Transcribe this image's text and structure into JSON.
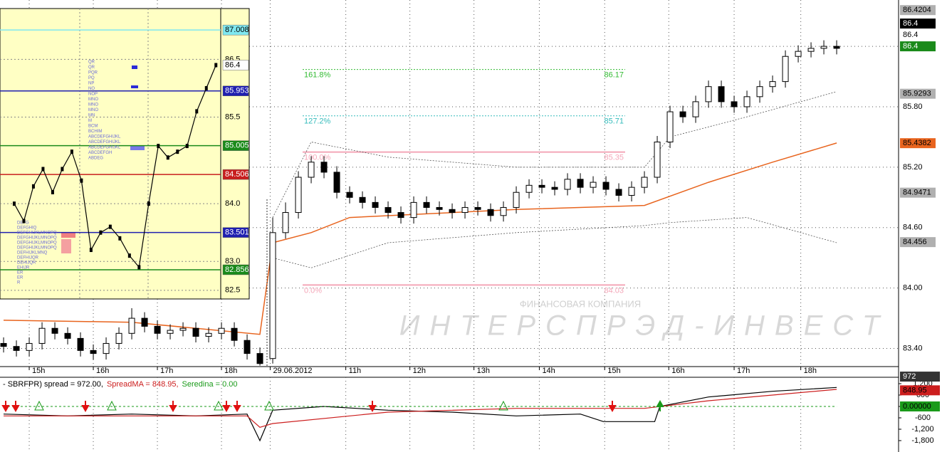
{
  "chart_data": [
    {
      "type": "candlestick",
      "xlim": [
        -0.28,
        69.83
      ],
      "ylim": [
        83.22,
        86.86
      ],
      "xticks": [
        {
          "value": 2,
          "label": "15h"
        },
        {
          "value": 7,
          "label": "16h"
        },
        {
          "value": 12,
          "label": "17h"
        },
        {
          "value": 17,
          "label": "18h"
        },
        {
          "value": 20.8,
          "label": "29.06.2012"
        },
        {
          "value": 26.7,
          "label": "11h"
        },
        {
          "value": 31.7,
          "label": "12h"
        },
        {
          "value": 36.7,
          "label": "13h"
        },
        {
          "value": 41.8,
          "label": "14h"
        },
        {
          "value": 46.9,
          "label": "15h"
        },
        {
          "value": 51.9,
          "label": "16h"
        },
        {
          "value": 57,
          "label": "17h"
        },
        {
          "value": 62.2,
          "label": "18h"
        }
      ],
      "yticks": [
        {
          "value": 86.4,
          "label": "86.40"
        },
        {
          "value": 85.8,
          "label": "85.80"
        },
        {
          "value": 85.2,
          "label": "85.20"
        },
        {
          "value": 84.6,
          "label": "84.60"
        },
        {
          "value": 84,
          "label": "84.00"
        },
        {
          "value": 83.4,
          "label": "83.40"
        }
      ],
      "open": [
        83.45,
        83.42,
        83.38,
        83.45,
        83.6,
        83.55,
        83.5,
        83.38,
        83.35,
        83.45,
        83.55,
        83.7,
        83.62,
        83.55,
        83.58,
        83.6,
        83.52,
        83.55,
        83.6,
        83.48,
        83.35,
        83.3,
        84.55,
        84.75,
        85.1,
        85.25,
        85.15,
        84.95,
        84.9,
        84.85,
        84.8,
        84.75,
        84.7,
        84.85,
        84.8,
        84.78,
        84.75,
        84.8,
        84.78,
        84.72,
        84.8,
        84.95,
        85.02,
        85.0,
        84.98,
        85.08,
        85.0,
        85.05,
        84.98,
        84.92,
        85.0,
        85.1,
        85.45,
        85.75,
        85.7,
        85.85,
        86.0,
        85.85,
        85.8,
        85.9,
        86.0,
        86.05,
        86.3,
        86.35,
        86.38,
        86.4
      ],
      "high": [
        83.51,
        83.48,
        83.51,
        83.66,
        83.66,
        83.61,
        83.56,
        83.44,
        83.51,
        83.61,
        83.8,
        83.76,
        83.68,
        83.64,
        83.66,
        83.66,
        83.61,
        83.66,
        83.66,
        83.54,
        83.41,
        84.7,
        84.85,
        85.16,
        85.31,
        85.31,
        85.21,
        85.01,
        84.96,
        84.91,
        84.86,
        84.81,
        84.91,
        84.91,
        84.86,
        84.84,
        84.86,
        84.86,
        84.84,
        84.86,
        85.01,
        85.08,
        85.08,
        85.06,
        85.14,
        85.14,
        85.11,
        85.11,
        85.04,
        85.06,
        85.16,
        85.51,
        85.81,
        85.81,
        85.91,
        86.06,
        86.06,
        85.91,
        85.96,
        86.06,
        86.11,
        86.36,
        86.41,
        86.44,
        86.46,
        86.46
      ],
      "low": [
        83.36,
        83.32,
        83.32,
        83.39,
        83.49,
        83.44,
        83.32,
        83.29,
        83.29,
        83.39,
        83.49,
        83.56,
        83.49,
        83.49,
        83.52,
        83.46,
        83.46,
        83.49,
        83.42,
        83.29,
        83.23,
        83.25,
        84.49,
        84.69,
        85.04,
        85.09,
        84.89,
        84.84,
        84.79,
        84.74,
        84.69,
        84.64,
        84.64,
        84.74,
        84.72,
        84.69,
        84.69,
        84.72,
        84.66,
        84.66,
        84.74,
        84.89,
        84.94,
        84.92,
        84.92,
        84.94,
        84.94,
        84.92,
        84.86,
        84.86,
        84.94,
        85.04,
        85.39,
        85.64,
        85.64,
        85.79,
        85.79,
        85.74,
        85.74,
        85.84,
        85.94,
        85.99,
        86.24,
        86.29,
        86.32,
        86.32
      ],
      "close": [
        83.42,
        83.38,
        83.45,
        83.6,
        83.55,
        83.5,
        83.38,
        83.35,
        83.45,
        83.55,
        83.7,
        83.62,
        83.55,
        83.58,
        83.6,
        83.52,
        83.55,
        83.6,
        83.48,
        83.35,
        83.25,
        84.55,
        84.75,
        85.1,
        85.25,
        85.15,
        84.95,
        84.9,
        84.85,
        84.8,
        84.75,
        84.7,
        84.85,
        84.8,
        84.78,
        84.75,
        84.8,
        84.78,
        84.72,
        84.8,
        84.95,
        85.02,
        85.0,
        84.98,
        85.08,
        85.0,
        85.05,
        84.98,
        84.92,
        85.0,
        85.1,
        85.45,
        85.75,
        85.7,
        85.85,
        86.0,
        85.85,
        85.8,
        85.9,
        86.0,
        86.05,
        86.3,
        86.35,
        86.38,
        86.4,
        86.38
      ],
      "lines": [
        {
          "color": "#e8641e",
          "x": [
            0,
            10,
            20,
            21,
            24,
            27,
            40,
            50,
            55,
            60,
            65
          ],
          "values": [
            83.68,
            83.66,
            83.54,
            84.45,
            84.55,
            84.7,
            84.78,
            84.82,
            85.05,
            85.25,
            85.44
          ]
        },
        {
          "color": "#555555",
          "dashed": true,
          "x": [
            21,
            24,
            30,
            40,
            50,
            52,
            58,
            65
          ],
          "values": [
            84.7,
            85.45,
            85.3,
            85.2,
            85.2,
            85.5,
            85.7,
            85.95
          ]
        },
        {
          "color": "#555555",
          "dashed": true,
          "x": [
            21,
            24,
            30,
            40,
            50,
            52,
            58,
            65
          ],
          "values": [
            84.3,
            84.2,
            84.45,
            84.55,
            84.62,
            84.65,
            84.7,
            84.45
          ]
        }
      ],
      "fib_levels": [
        {
          "label": "161.8%",
          "value": 86.17,
          "color": "#33bb33"
        },
        {
          "label": "127.2%",
          "value": 85.71,
          "color": "#33bbbb"
        },
        {
          "label": "100.0%",
          "value": 85.35,
          "color": "#f4a6b8"
        },
        {
          "label": "0.0%",
          "value": 84.03,
          "color": "#f4a6b8"
        }
      ],
      "price_labels": [
        {
          "value": 86.4,
          "color": "#1a8a1a",
          "text_color": "#ffffff"
        },
        {
          "value": 86.4,
          "color": "#ffffff",
          "text_color": "#000000"
        },
        {
          "value": 86.4,
          "color": "#000000",
          "text_color": "#ffffff"
        },
        {
          "value": 86.4204,
          "color": "#b0b0b0",
          "text_color": "#000000"
        },
        {
          "value": 85.9293,
          "color": "#b0b0b0",
          "text_color": "#000000"
        },
        {
          "value": 85.4382,
          "color": "#e8641e",
          "text_color": "#000000"
        },
        {
          "value": 84.9471,
          "color": "#b0b0b0",
          "text_color": "#000000"
        },
        {
          "value": 84.456,
          "color": "#b0b0b0",
          "text_color": "#000000"
        }
      ],
      "watermark": {
        "small": "ФИНАНСОВАЯ КОМПАНИЯ",
        "big": "ИНТЕРСПРЭД-ИНВЕСТ"
      }
    },
    {
      "type": "line",
      "xlim": [
        -1.48,
        21.5
      ],
      "ylim": [
        82.35,
        87.38
      ],
      "yticks": [
        86.5,
        85.5,
        {
          "value": 84,
          "label": "84.0"
        },
        {
          "value": 83,
          "label": "83.0"
        },
        82.5
      ],
      "values": [
        84.0,
        83.7,
        84.3,
        84.6,
        84.2,
        84.6,
        84.9,
        84.4,
        83.2,
        83.5,
        83.6,
        83.4,
        83.1,
        82.9,
        84.0,
        85.0,
        84.8,
        84.9,
        85.0,
        85.6,
        86.0,
        86.4
      ],
      "levels": [
        {
          "value": 87.008,
          "color": "#7fe8f0"
        },
        {
          "value": 86.4,
          "color": "#ffffff"
        },
        {
          "value": 85.953,
          "color": "#1f1fb0"
        },
        {
          "value": 85.005,
          "color": "#1a8a1a"
        },
        {
          "value": 84.506,
          "color": "#c81e1e"
        },
        {
          "value": 83.501,
          "color": "#1f1fb0"
        },
        {
          "value": 82.856,
          "color": "#1a8a1a"
        }
      ],
      "tpo_left": [
        "DEFG",
        "DEFGHIQ",
        "DEFGHIJKLMNOPQ",
        "DEFGHIJKLMNOPQ",
        "DEFGHIJKLMNOPQ",
        "DEFGHIJKLMNOPQ",
        "DEFHIJKLMNQ",
        "DEFHIJQR",
        "DEHIJQR",
        "EHIJR",
        "ER",
        "ER",
        "R"
      ],
      "tpo_mid": [
        "QR",
        "QR",
        "PQR",
        "PQ",
        "NP",
        "NO",
        "NOP",
        "MNO",
        "MNO",
        "MNO",
        "MN",
        "M",
        "BCM",
        "BCHIM",
        "ABCDEFGHIJKL",
        "ABCDEFGHIJKL",
        "ABCDEFGHIJKL",
        "ABCDEFGH",
        "ABDEG"
      ]
    },
    {
      "type": "line",
      "xlim": [
        -0.28,
        69.83
      ],
      "ylim": [
        -2400,
        1537
      ],
      "yticks": [
        {
          "value": 1200,
          "label": "1,200"
        },
        600,
        0,
        -600,
        {
          "value": -1200,
          "label": "-1,200"
        },
        {
          "value": -1800,
          "label": "-1,800"
        }
      ],
      "series": [
        {
          "name": "- SBRFPR) spread = 972.00,",
          "color": "#000000",
          "x": [
            0,
            5,
            10,
            15,
            19,
            20,
            21,
            25,
            30,
            35,
            40,
            45,
            46.8,
            50.8,
            51.2,
            55,
            60,
            65
          ],
          "values": [
            -400,
            -500,
            -400,
            -500,
            -400,
            -1800,
            -200,
            0,
            -200,
            -300,
            -500,
            -400,
            -800,
            -800,
            0,
            500,
            800,
            1000
          ]
        },
        {
          "name": "SpreadMA = 848.95,",
          "color": "#cc1e1e",
          "x": [
            0,
            19,
            20,
            21,
            30,
            40,
            50,
            55,
            60,
            65
          ],
          "values": [
            -500,
            -500,
            -1100,
            -900,
            -300,
            -100,
            -100,
            300,
            600,
            900
          ]
        },
        {
          "name": "Seredina = 0.00",
          "color": "#1a9a1a",
          "dashed": true,
          "x": [
            0,
            65
          ],
          "values": [
            0,
            0
          ]
        }
      ],
      "value_labels": [
        {
          "value": 848.95,
          "color": "#cc1e1e",
          "text_color": "#000000"
        },
        {
          "value": 972,
          "color": "#333333",
          "text_color": "#ffffff"
        },
        {
          "value": 0,
          "label": "0.00000",
          "color": "#1a9a1a",
          "text_color": "#000000"
        }
      ]
    }
  ]
}
